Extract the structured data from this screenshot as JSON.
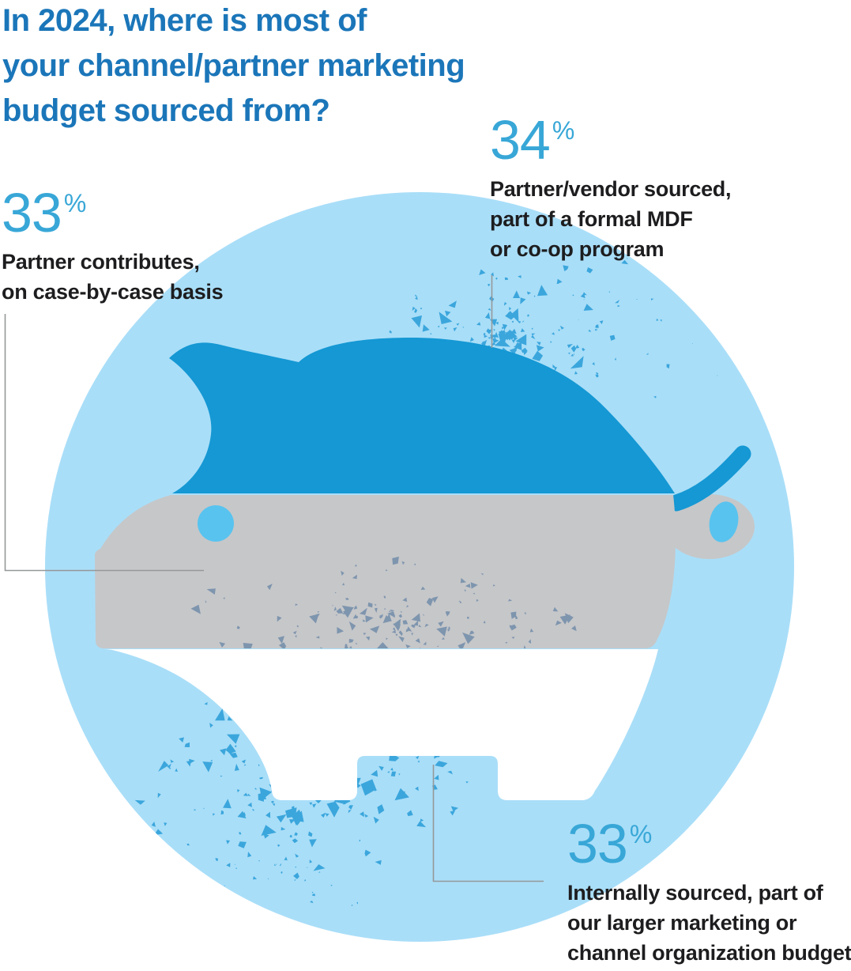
{
  "title": {
    "lines": [
      "In 2024, where is most of",
      "your channel/partner marketing",
      "budget sourced from?"
    ]
  },
  "stats": [
    {
      "id": "partner-vendor-mdf",
      "value": "34",
      "unit": "%",
      "label_lines": [
        "Partner/vendor sourced,",
        "part of a formal MDF",
        "or co-op program"
      ]
    },
    {
      "id": "partner-contributes",
      "value": "33",
      "unit": "%",
      "label_lines": [
        "Partner contributes,",
        "on case-by-case basis"
      ]
    },
    {
      "id": "internally-sourced",
      "value": "33",
      "unit": "%",
      "label_lines": [
        "Internally sourced, part of",
        "our larger marketing or",
        "channel organization budget"
      ]
    }
  ],
  "colors": {
    "background": "#ffffff",
    "circle": "#a9def8",
    "pig_blue": "#1598d4",
    "pig_gray": "#c6c7c9",
    "pig_white": "#ffffff",
    "accent_bright": "#58c3ef",
    "title": "#1b76b9",
    "numeral": "#38a7d7",
    "label_text": "#1d1d1f",
    "leader_line": "#95989a",
    "speckle_blue": "#3ba6dc",
    "speckle_slate": "#7e95ae"
  },
  "chart_data": {
    "type": "pie",
    "title": "In 2024, where is most of your channel/partner marketing budget sourced from?",
    "categories": [
      "Partner/vendor sourced, part of a formal MDF or co-op program",
      "Partner contributes, on case-by-case basis",
      "Internally sourced, part of our larger marketing or channel organization budget"
    ],
    "values": [
      34,
      33,
      33
    ],
    "unit": "%",
    "legend_position": "callout-labels",
    "illustration": "piggy-bank split into three horizontal bands (blue top = 34%, gray middle = 33%, white bottom = 33%) inside a light blue circle with confetti speckles"
  }
}
